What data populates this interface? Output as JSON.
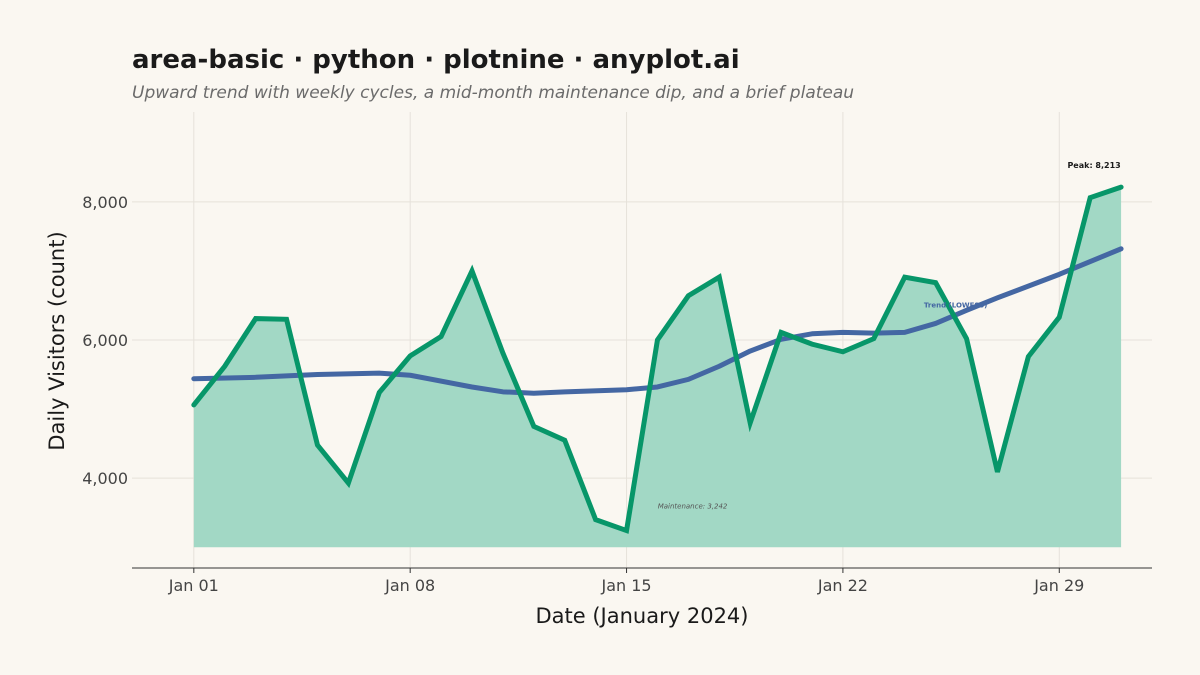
{
  "chart_data": {
    "type": "area",
    "title": "area-basic · python · plotnine · anyplot.ai",
    "subtitle": "Upward trend with weekly cycles, a mid-month maintenance dip, and a brief plateau",
    "xlabel": "Date (January 2024)",
    "ylabel": "Daily Visitors (count)",
    "x_ticks": [
      {
        "day": 1,
        "label": "Jan 01"
      },
      {
        "day": 8,
        "label": "Jan 08"
      },
      {
        "day": 15,
        "label": "Jan 15"
      },
      {
        "day": 22,
        "label": "Jan 22"
      },
      {
        "day": 29,
        "label": "Jan 29"
      }
    ],
    "y_ticks": [
      {
        "value": 4000,
        "label": "4,000"
      },
      {
        "value": 6000,
        "label": "6,000"
      },
      {
        "value": 8000,
        "label": "8,000"
      }
    ],
    "xlim": [
      "2023-12-30",
      "2024-02-01"
    ],
    "ylim": [
      2700,
      9300
    ],
    "area_baseline": 3000,
    "grid": true,
    "colors": {
      "area_fill": "#a2d8c5",
      "line": "#079669",
      "trend": "#4467a3",
      "background": "#faf7f1"
    },
    "series": [
      {
        "name": "Daily Visitors",
        "x": [
          "2024-01-01",
          "2024-01-02",
          "2024-01-03",
          "2024-01-04",
          "2024-01-05",
          "2024-01-06",
          "2024-01-07",
          "2024-01-08",
          "2024-01-09",
          "2024-01-10",
          "2024-01-11",
          "2024-01-12",
          "2024-01-13",
          "2024-01-14",
          "2024-01-15",
          "2024-01-16",
          "2024-01-17",
          "2024-01-18",
          "2024-01-19",
          "2024-01-20",
          "2024-01-21",
          "2024-01-22",
          "2024-01-23",
          "2024-01-24",
          "2024-01-25",
          "2024-01-26",
          "2024-01-27",
          "2024-01-28",
          "2024-01-29",
          "2024-01-30",
          "2024-01-31"
        ],
        "values": [
          5060,
          5620,
          6310,
          6300,
          4480,
          3930,
          5240,
          5770,
          6050,
          7000,
          5810,
          4750,
          4550,
          3400,
          3242,
          6000,
          6640,
          6910,
          4800,
          6110,
          5940,
          5830,
          6020,
          6910,
          6830,
          6020,
          4090,
          5760,
          6330,
          8060,
          8213
        ]
      },
      {
        "name": "Trend (LOWESS)",
        "x": [
          "2024-01-01",
          "2024-01-03",
          "2024-01-05",
          "2024-01-07",
          "2024-01-08",
          "2024-01-10",
          "2024-01-11",
          "2024-01-12",
          "2024-01-13",
          "2024-01-15",
          "2024-01-16",
          "2024-01-17",
          "2024-01-18",
          "2024-01-19",
          "2024-01-20",
          "2024-01-21",
          "2024-01-22",
          "2024-01-23",
          "2024-01-24",
          "2024-01-25",
          "2024-01-26",
          "2024-01-27",
          "2024-01-29",
          "2024-01-31"
        ],
        "values": [
          5440,
          5460,
          5500,
          5520,
          5490,
          5320,
          5250,
          5230,
          5250,
          5280,
          5320,
          5430,
          5620,
          5840,
          6010,
          6090,
          6110,
          6100,
          6110,
          6240,
          6430,
          6610,
          6950,
          7320
        ]
      }
    ],
    "annotations": [
      {
        "text": "Peak: 8,213",
        "x": "2024-01-31",
        "y": 8213
      },
      {
        "text": "Maintenance: 3,242",
        "x": "2024-01-15",
        "y": 3242
      },
      {
        "text": "Trend (LOWESS)",
        "x": "2024-01-25",
        "y": 6240
      }
    ]
  }
}
